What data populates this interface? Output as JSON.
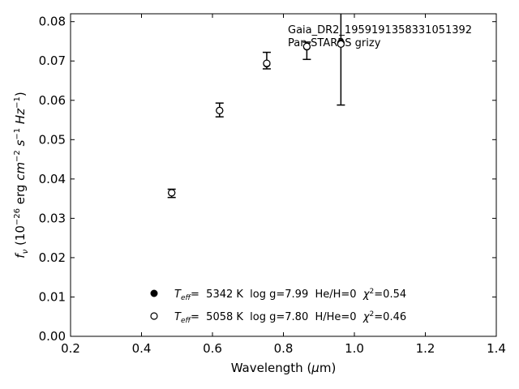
{
  "chart_data": {
    "type": "scatter",
    "xlim": [
      0.2,
      1.4
    ],
    "ylim": [
      0.0,
      0.082
    ],
    "xticks": [
      "0.2",
      "0.4",
      "0.6",
      "0.8",
      "1.0",
      "1.2",
      "1.4"
    ],
    "xtick_values": [
      0.2,
      0.4,
      0.6,
      0.8,
      1.0,
      1.2,
      1.4
    ],
    "yticks": [
      "0.00",
      "0.01",
      "0.02",
      "0.03",
      "0.04",
      "0.05",
      "0.06",
      "0.07",
      "0.08"
    ],
    "ytick_values": [
      0.0,
      0.01,
      0.02,
      0.03,
      0.04,
      0.05,
      0.06,
      0.07,
      0.08
    ],
    "xlabel": "Wavelength (μm)",
    "ylabel": "f_ν (10^−26 erg cm^−2 s^−1 Hz^−1)",
    "grid": false,
    "annotation": {
      "line1": "Gaia_DR2_1959191358331051392",
      "line2": "Pan-STARRS grizy"
    },
    "observed": [
      {
        "x": 0.485,
        "y": 0.0365,
        "yerr_low": 0.0353,
        "yerr_high": 0.0374
      },
      {
        "x": 0.62,
        "y": 0.0575,
        "yerr_low": 0.0558,
        "yerr_high": 0.0593
      },
      {
        "x": 0.753,
        "y": 0.0693,
        "yerr_low": 0.068,
        "yerr_high": 0.0722
      },
      {
        "x": 0.866,
        "y": 0.0736,
        "yerr_low": 0.0704,
        "yerr_high": 0.0748
      },
      {
        "x": 0.962,
        "y": 0.0745,
        "yerr_low": 0.0588,
        "yerr_high": 0.083
      }
    ],
    "series": [
      {
        "marker": "filled",
        "x": [
          0.485,
          0.62,
          0.753,
          0.866,
          0.962
        ],
        "y": [
          0.0365,
          0.0574,
          0.0693,
          0.0736,
          0.0746
        ]
      },
      {
        "marker": "open",
        "x": [
          0.485,
          0.62,
          0.753,
          0.866,
          0.962
        ],
        "y": [
          0.0365,
          0.0574,
          0.0694,
          0.0737,
          0.0743
        ]
      }
    ],
    "legend": [
      {
        "marker": "filled",
        "teff_label": "T",
        "teff_sub": "eff",
        "eq": "=",
        "text": "  5342 K  log g=7.99  He/H=0  ",
        "chi": "χ",
        "chi_sup": "2",
        "chi_val": "=0.54"
      },
      {
        "marker": "open",
        "teff_label": "T",
        "teff_sub": "eff",
        "eq": "=",
        "text": "  5058 K  log g=7.80  H/He=0  ",
        "chi": "χ",
        "chi_sup": "2",
        "chi_val": "=0.46"
      }
    ],
    "legend_position": "lower-center"
  }
}
